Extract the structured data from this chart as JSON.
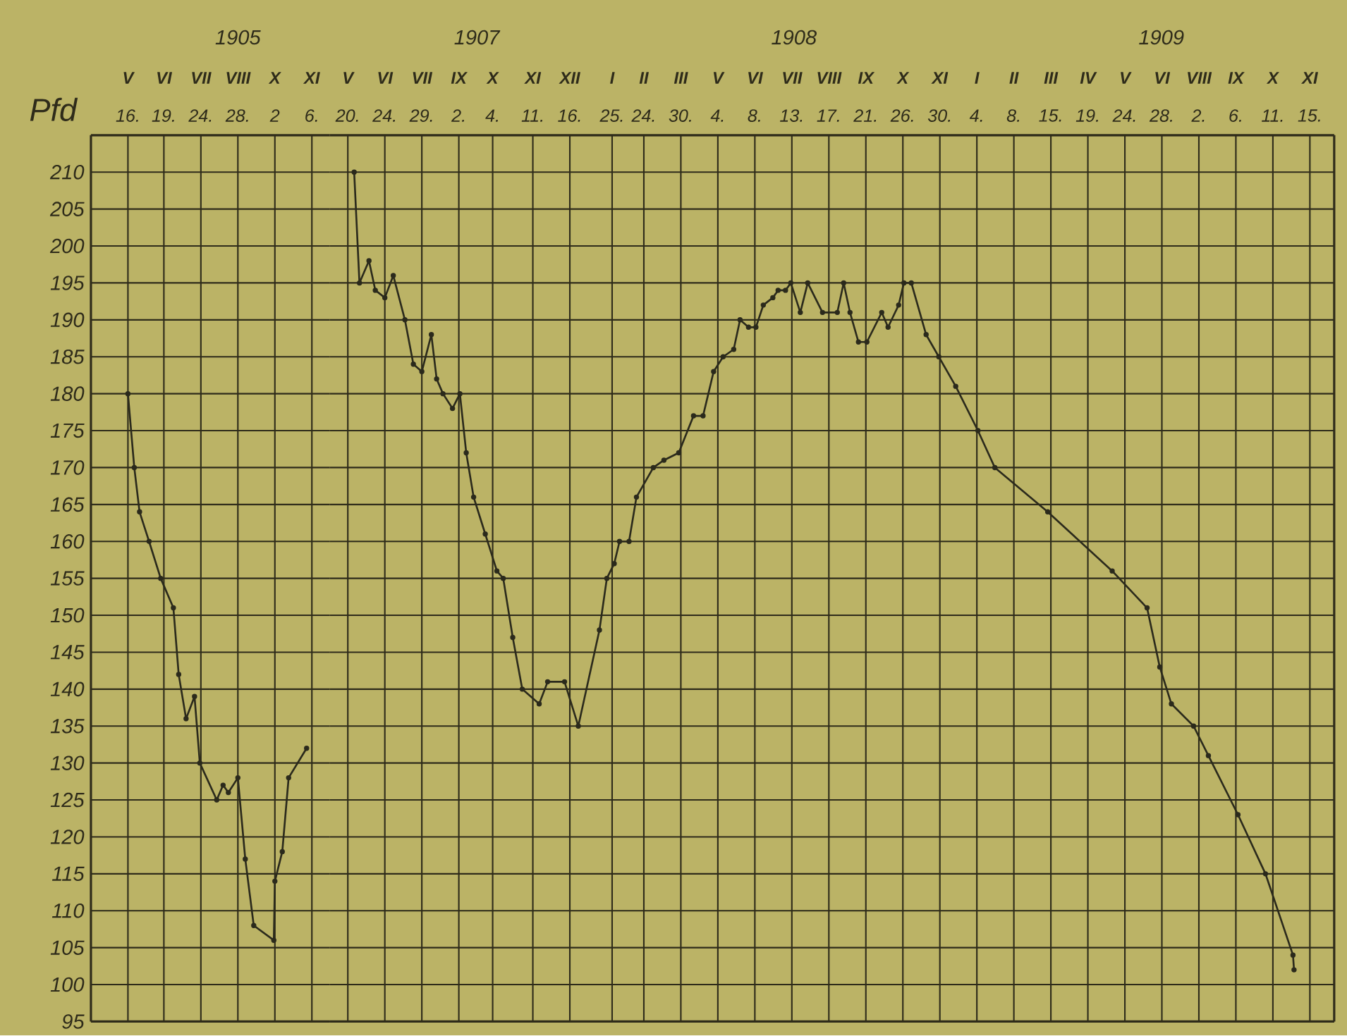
{
  "chart_data": [
    {
      "type": "line",
      "ylabel": "Pfd",
      "x": [
        "1905-05-16",
        "1905-05-22",
        "1905-05-27",
        "1905-06-05",
        "1905-06-16",
        "1905-06-28",
        "1905-07-03",
        "1905-07-10",
        "1905-07-18",
        "1905-07-23",
        "1905-08-08",
        "1905-08-14",
        "1905-08-19",
        "1905-08-28",
        "1905-09-04",
        "1905-09-12",
        "1905-10-01",
        "1905-10-02",
        "1905-10-09",
        "1905-10-15",
        "1905-11-01"
      ],
      "series": [
        {
          "color": "#2b2a1c",
          "values": [
            180,
            170,
            164,
            160,
            155,
            151,
            142,
            136,
            139,
            130,
            125,
            127,
            126,
            128,
            117,
            108,
            106,
            114,
            118,
            128,
            132
          ]
        }
      ],
      "xlim": [
        "1905-04-11",
        "1905-11-23"
      ],
      "ylim": [
        95,
        215
      ],
      "yticks": [
        95,
        100,
        105,
        110,
        115,
        120,
        125,
        130,
        135,
        140,
        145,
        150,
        155,
        160,
        165,
        170,
        175,
        180,
        185,
        190,
        195,
        200,
        205,
        210
      ],
      "xticks": [
        {
          "value": "1905-05-16",
          "label": "16."
        },
        {
          "value": "1905-06-19",
          "label": "19."
        },
        {
          "value": "1905-07-24",
          "label": "24."
        },
        {
          "value": "1905-08-28",
          "label": "28."
        },
        {
          "value": "1905-10-02",
          "label": "2"
        },
        {
          "value": "1905-11-06",
          "label": "6."
        }
      ],
      "annotations": [
        "1905",
        "V",
        "VI",
        "VII",
        "VIII",
        "X",
        "XI"
      ],
      "grid": true,
      "marker": "circle",
      "line_style": "solid"
    },
    {
      "type": "line",
      "tick_labels": "x",
      "x": [
        "1907-05-26",
        "1907-05-31",
        "1907-06-09",
        "1907-06-15",
        "1907-06-24",
        "1907-07-02",
        "1907-07-13",
        "1907-07-21",
        "1907-07-29",
        "1907-08-07",
        "1907-08-12",
        "1907-08-18",
        "1907-08-27",
        "1907-09-03",
        "1907-09-09",
        "1907-09-16",
        "1907-09-27",
        "1907-10-08",
        "1907-10-14",
        "1907-10-23",
        "1907-11-01",
        "1907-11-17",
        "1907-11-25",
        "1907-12-11",
        "1907-12-24",
        "1908-01-13",
        "1908-01-20",
        "1908-01-27",
        "1908-02-01",
        "1908-02-10",
        "1908-02-17",
        "1908-03-04",
        "1908-03-14",
        "1908-03-28",
        "1908-04-11",
        "1908-04-20",
        "1908-04-30",
        "1908-05-09",
        "1908-05-19",
        "1908-05-25",
        "1908-06-02",
        "1908-06-09",
        "1908-06-16",
        "1908-06-25",
        "1908-06-30",
        "1908-07-07",
        "1908-07-12",
        "1908-07-21",
        "1908-07-28",
        "1908-08-11",
        "1908-08-25",
        "1908-08-31",
        "1908-09-06",
        "1908-09-14",
        "1908-09-22",
        "1908-10-06",
        "1908-10-12",
        "1908-10-22",
        "1908-10-27",
        "1908-11-03",
        "1908-11-17",
        "1908-11-29",
        "1908-12-15",
        "1909-01-05",
        "1909-01-21",
        "1909-03-12",
        "1909-05-12",
        "1909-06-14",
        "1909-06-26",
        "1909-07-07",
        "1909-07-28",
        "1909-08-11",
        "1909-09-08",
        "1909-10-04",
        "1909-10-30",
        "1909-10-31"
      ],
      "series": [
        {
          "color": "#2b2a1c",
          "values": [
            210,
            195,
            198,
            194,
            193,
            196,
            190,
            184,
            183,
            188,
            182,
            180,
            178,
            180,
            172,
            166,
            161,
            156,
            155,
            147,
            140,
            138,
            141,
            141,
            135,
            148,
            155,
            157,
            160,
            160,
            166,
            170,
            171,
            172,
            177,
            177,
            183,
            185,
            186,
            190,
            189,
            189,
            192,
            193,
            194,
            194,
            195,
            191,
            195,
            191,
            191,
            195,
            191,
            187,
            187,
            191,
            189,
            192,
            195,
            195,
            188,
            185,
            181,
            175,
            170,
            164,
            156,
            151,
            143,
            138,
            135,
            131,
            123,
            115,
            104,
            102
          ]
        }
      ],
      "xlim": [
        "1907-05-03",
        "1909-12-08"
      ],
      "ylim": [
        95,
        215
      ],
      "yticks": [
        95,
        100,
        105,
        110,
        115,
        120,
        125,
        130,
        135,
        140,
        145,
        150,
        155,
        160,
        165,
        170,
        175,
        180,
        185,
        190,
        195,
        200,
        205,
        210
      ],
      "xticks": [
        {
          "value": "1907-05-20",
          "label": "20."
        },
        {
          "value": "1907-06-24",
          "label": "24."
        },
        {
          "value": "1907-07-29",
          "label": "29."
        },
        {
          "value": "1907-09-02",
          "label": "2."
        },
        {
          "value": "1907-10-04",
          "label": "4."
        },
        {
          "value": "1907-11-11",
          "label": "11."
        },
        {
          "value": "1907-12-16",
          "label": "16."
        },
        {
          "value": "1908-01-25",
          "label": "25."
        },
        {
          "value": "1908-02-24",
          "label": "24."
        },
        {
          "value": "1908-03-30",
          "label": "30."
        },
        {
          "value": "1908-05-04",
          "label": "4."
        },
        {
          "value": "1908-06-08",
          "label": "8."
        },
        {
          "value": "1908-07-13",
          "label": "13."
        },
        {
          "value": "1908-08-17",
          "label": "17."
        },
        {
          "value": "1908-09-21",
          "label": "21."
        },
        {
          "value": "1908-10-26",
          "label": "26."
        },
        {
          "value": "1908-11-30",
          "label": "30."
        },
        {
          "value": "1909-01-04",
          "label": "4."
        },
        {
          "value": "1909-02-08",
          "label": "8."
        },
        {
          "value": "1909-03-15",
          "label": "15."
        },
        {
          "value": "1909-04-19",
          "label": "19."
        },
        {
          "value": "1909-05-24",
          "label": "24."
        },
        {
          "value": "1909-06-28",
          "label": "28."
        },
        {
          "value": "1909-08-02",
          "label": "2."
        },
        {
          "value": "1909-09-06",
          "label": "6."
        },
        {
          "value": "1909-10-11",
          "label": "11."
        },
        {
          "value": "1909-11-15",
          "label": "15."
        }
      ],
      "annotations": [
        "1907",
        "1908",
        "1909",
        "V",
        "VI",
        "VII",
        "IX",
        "X",
        "XI",
        "XII",
        "I",
        "II",
        "III",
        "V",
        "VI",
        "VII",
        "VIII",
        "IX",
        "X",
        "XI",
        "I",
        "II",
        "III",
        "IV",
        "V",
        "VI",
        "VIII",
        "IX",
        "X",
        "XI"
      ],
      "grid": true,
      "marker": "circle",
      "line_style": "solid"
    }
  ]
}
